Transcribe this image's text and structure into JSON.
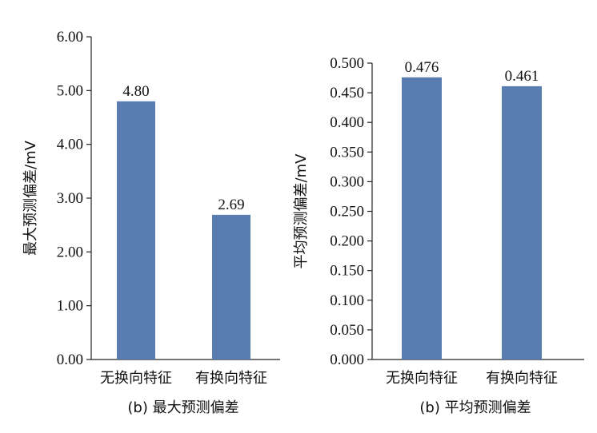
{
  "chart_data": [
    {
      "type": "bar",
      "categories": [
        "无换向特征",
        "有换向特征"
      ],
      "values": [
        4.8,
        2.69
      ],
      "value_labels": [
        "4.80",
        "2.69"
      ],
      "ylabel": "最大预测偏差/mV",
      "ylim": [
        0,
        6
      ],
      "yticks": [
        "0.00",
        "1.00",
        "2.00",
        "3.00",
        "4.00",
        "5.00",
        "6.00"
      ],
      "caption": "(b) 最大预测偏差",
      "bar_color": "#5a7db1",
      "grid": false
    },
    {
      "type": "bar",
      "categories": [
        "无换向特征",
        "有换向特征"
      ],
      "values": [
        0.476,
        0.461
      ],
      "value_labels": [
        "0.476",
        "0.461"
      ],
      "ylabel": "平均预测偏差/mV",
      "ylim": [
        0,
        0.5
      ],
      "yticks": [
        "0.000",
        "0.050",
        "0.100",
        "0.150",
        "0.200",
        "0.250",
        "0.300",
        "0.350",
        "0.400",
        "0.450",
        "0.500"
      ],
      "caption": "(b) 平均预测偏差",
      "bar_color": "#5a7db1",
      "grid": false
    }
  ]
}
